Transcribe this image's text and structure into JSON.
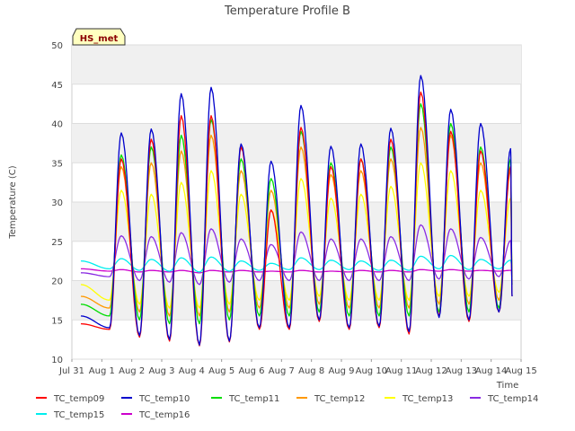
{
  "chart_data": {
    "type": "line",
    "title": "Temperature Profile B",
    "xlabel": "Time",
    "ylabel": "Temperature (C)",
    "ylim": [
      10,
      50
    ],
    "xlim": [
      0,
      15
    ],
    "yticks": [
      10,
      15,
      20,
      25,
      30,
      35,
      40,
      45,
      50
    ],
    "xtick_labels": [
      "Jul 31",
      "Aug 1",
      "Aug 2",
      "Aug 3",
      "Aug 4",
      "Aug 5",
      "Aug 6",
      "Aug 7",
      "Aug 8",
      "Aug 9",
      "Aug 10",
      "Aug 11",
      "Aug 12",
      "Aug 13",
      "Aug 14",
      "Aug 15"
    ],
    "x_range_days": [
      0.3,
      14.7
    ],
    "grid": true,
    "banded_background": true,
    "annotation": "HS_met",
    "legend_position": "bottom",
    "daily_peak_hour_fraction": 0.65,
    "daily_min_hour_fraction": 0.26,
    "series": [
      {
        "name": "TC_temp09",
        "color": "#ff0000",
        "start": 14.5,
        "end": 18.0,
        "peaks": [
          35.5,
          38.0,
          41.0,
          41.0,
          37.0,
          29.0,
          39.5,
          34.5,
          35.5,
          38.0,
          44.0,
          39.0,
          36.5,
          34.5
        ],
        "mins": [
          13.8,
          12.8,
          12.3,
          11.7,
          12.2,
          13.8,
          13.8,
          14.8,
          13.8,
          14.0,
          13.2,
          15.5,
          14.8,
          16.0
        ]
      },
      {
        "name": "TC_temp10",
        "color": "#0000cc",
        "start": 15.5,
        "end": 18.0,
        "peaks": [
          38.8,
          39.3,
          43.8,
          44.6,
          37.4,
          35.2,
          42.3,
          37.1,
          37.4,
          39.4,
          46.1,
          41.8,
          40.0,
          36.8
        ],
        "mins": [
          14.0,
          13.0,
          12.5,
          11.8,
          12.3,
          14.0,
          14.0,
          15.0,
          14.0,
          14.2,
          13.5,
          15.3,
          15.0,
          16.0
        ]
      },
      {
        "name": "TC_temp11",
        "color": "#00dd00",
        "start": 17.0,
        "end": 19.5,
        "peaks": [
          36.0,
          37.0,
          38.5,
          40.5,
          35.5,
          33.0,
          39.0,
          35.0,
          35.5,
          37.0,
          42.5,
          40.0,
          37.0,
          35.5
        ],
        "mins": [
          15.5,
          15.0,
          14.5,
          14.5,
          15.0,
          15.5,
          15.5,
          16.0,
          15.5,
          15.5,
          15.5,
          16.0,
          16.0,
          16.5
        ]
      },
      {
        "name": "TC_temp12",
        "color": "#ff9900",
        "start": 18.0,
        "end": 20.0,
        "peaks": [
          34.5,
          35.0,
          36.5,
          38.5,
          34.0,
          31.5,
          37.0,
          33.5,
          34.0,
          35.5,
          39.5,
          38.5,
          35.0,
          34.0
        ],
        "mins": [
          16.5,
          16.0,
          15.5,
          15.5,
          16.0,
          16.5,
          16.5,
          17.0,
          16.5,
          16.5,
          16.5,
          17.0,
          17.0,
          17.5
        ]
      },
      {
        "name": "TC_temp13",
        "color": "#ffff00",
        "start": 19.5,
        "end": 20.5,
        "peaks": [
          31.5,
          31.0,
          32.5,
          34.0,
          31.0,
          29.0,
          33.0,
          30.5,
          31.0,
          32.0,
          35.0,
          34.0,
          31.5,
          30.5
        ],
        "mins": [
          17.5,
          17.0,
          16.5,
          16.5,
          17.0,
          17.5,
          17.5,
          18.0,
          17.5,
          17.5,
          17.5,
          18.0,
          18.0,
          18.5
        ]
      },
      {
        "name": "TC_temp14",
        "color": "#8a2be2",
        "start": 21.0,
        "end": 19.8,
        "peaks": [
          25.7,
          25.6,
          26.1,
          26.6,
          25.3,
          24.6,
          26.2,
          25.3,
          25.3,
          25.6,
          27.1,
          26.6,
          25.5,
          25.1
        ],
        "mins": [
          20.5,
          20.0,
          19.8,
          19.5,
          19.8,
          20.0,
          20.0,
          20.0,
          20.0,
          20.0,
          20.0,
          20.2,
          20.2,
          20.5
        ]
      },
      {
        "name": "TC_temp15",
        "color": "#00eeee",
        "start": 22.5,
        "end": 21.5,
        "peaks": [
          22.8,
          22.7,
          22.9,
          23.0,
          22.5,
          22.2,
          22.9,
          22.6,
          22.5,
          22.6,
          23.1,
          23.2,
          22.7,
          22.6
        ],
        "mins": [
          21.5,
          21.3,
          21.2,
          21.1,
          21.2,
          21.3,
          21.4,
          21.4,
          21.4,
          21.3,
          21.3,
          21.5,
          21.4,
          21.5
        ]
      },
      {
        "name": "TC_temp16",
        "color": "#cc00cc",
        "start": 21.5,
        "end": 21.3,
        "peaks": [
          21.4,
          21.3,
          21.3,
          21.3,
          21.3,
          21.2,
          21.3,
          21.2,
          21.3,
          21.3,
          21.4,
          21.4,
          21.3,
          21.3
        ],
        "mins": [
          21.2,
          21.1,
          21.1,
          21.0,
          21.1,
          21.1,
          21.1,
          21.1,
          21.1,
          21.1,
          21.1,
          21.2,
          21.2,
          21.2
        ]
      }
    ]
  }
}
